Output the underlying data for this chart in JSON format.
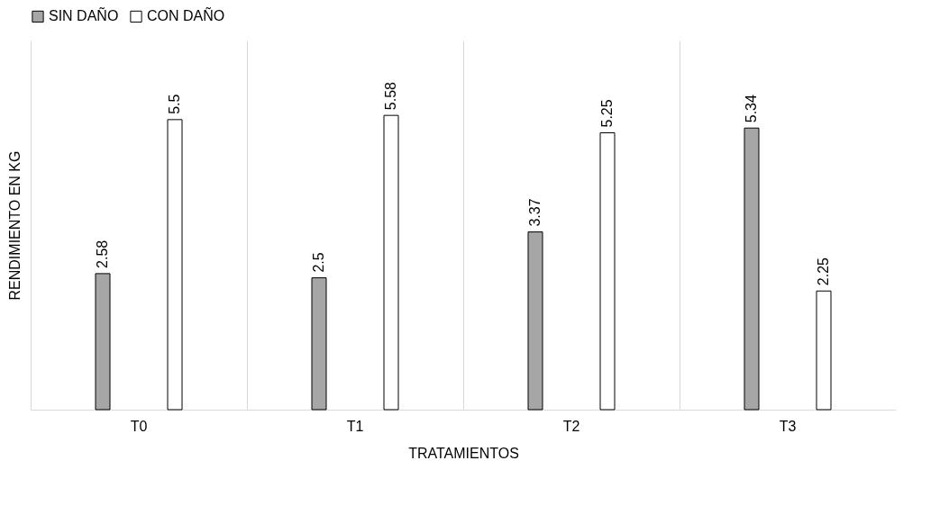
{
  "chart_data": {
    "type": "bar",
    "xlabel": "TRATAMIENTOS",
    "ylabel": "RENDIMIENTO  EN KG",
    "categories": [
      "T0",
      "T1",
      "T2",
      "T3"
    ],
    "series": [
      {
        "name": "SIN DAÑO",
        "color": "#a6a6a6",
        "values": [
          2.58,
          2.5,
          3.37,
          5.34
        ]
      },
      {
        "name": "CON DAÑO",
        "color": "#ffffff",
        "values": [
          5.5,
          5.58,
          5.25,
          2.25
        ]
      }
    ],
    "ylim": [
      0,
      7
    ],
    "data_labels": true,
    "grid": "x",
    "legend": "top"
  }
}
